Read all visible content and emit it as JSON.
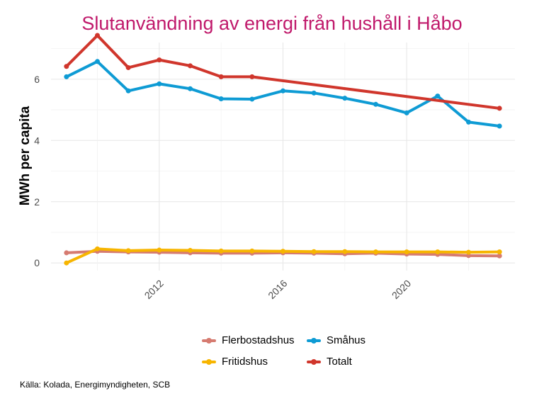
{
  "chart_data": {
    "type": "line",
    "title": "Slutanvändning av energi från hushåll i Håbo",
    "xlabel": "",
    "ylabel": "MWh per capita",
    "source": "Källa: Kolada, Energimyndigheten, SCB",
    "xlim": [
      2008.5,
      2023.5
    ],
    "ylim": [
      -0.25,
      7.2
    ],
    "x_ticks": [
      2012,
      2016,
      2020
    ],
    "y_ticks": [
      0,
      2,
      4,
      6
    ],
    "grid": true,
    "legend_position": "bottom",
    "series": [
      {
        "name": "Flerbostadshus",
        "color": "#d67b70",
        "x": [
          2009,
          2010,
          2011,
          2012,
          2013,
          2014,
          2015,
          2016,
          2017,
          2018,
          2019,
          2020,
          2021,
          2022,
          2023
        ],
        "values": [
          0.33,
          0.38,
          0.36,
          0.35,
          0.33,
          0.32,
          0.32,
          0.33,
          0.32,
          0.3,
          0.32,
          0.29,
          0.28,
          0.24,
          0.23
        ]
      },
      {
        "name": "Fritidshus",
        "color": "#f7b500",
        "x": [
          2009,
          2010,
          2011,
          2012,
          2013,
          2014,
          2015,
          2016,
          2017,
          2018,
          2019,
          2020,
          2021,
          2022,
          2023
        ],
        "values": [
          0.0,
          0.46,
          0.4,
          0.42,
          0.41,
          0.39,
          0.39,
          0.38,
          0.37,
          0.37,
          0.36,
          0.36,
          0.36,
          0.35,
          0.36
        ]
      },
      {
        "name": "Småhus",
        "color": "#0e9bd4",
        "x": [
          2009,
          2010,
          2011,
          2012,
          2013,
          2014,
          2015,
          2016,
          2017,
          2018,
          2019,
          2020,
          2021,
          2022,
          2023
        ],
        "values": [
          6.08,
          6.58,
          5.62,
          5.85,
          5.69,
          5.36,
          5.35,
          5.62,
          5.55,
          5.38,
          5.18,
          4.9,
          5.45,
          4.6,
          4.47
        ]
      },
      {
        "name": "Totalt",
        "color": "#d0362c",
        "x": [
          2009,
          2010,
          2011,
          2012,
          2013,
          2014,
          2015,
          2023
        ],
        "values": [
          6.42,
          7.43,
          6.38,
          6.63,
          6.44,
          6.08,
          6.08,
          5.05
        ]
      }
    ]
  }
}
